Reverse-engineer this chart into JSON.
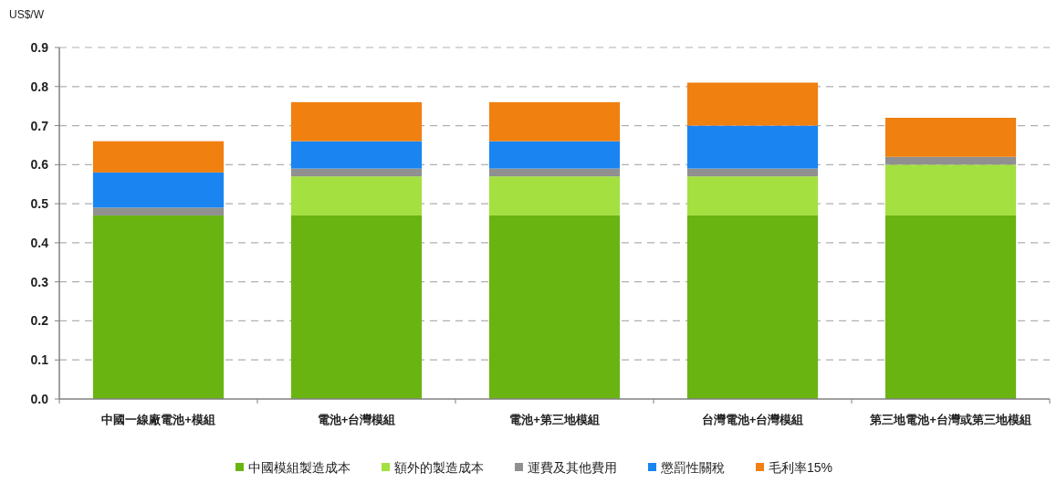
{
  "chart_data": {
    "type": "bar",
    "stacked": true,
    "ylabel": "US$/W",
    "categories": [
      "中國一線廠電池+模組",
      "電池+台灣模組",
      "電池+第三地模組",
      "台灣電池+台灣模組",
      "第三地電池+台灣或第三地模組"
    ],
    "series": [
      {
        "name": "中國模組製造成本",
        "color": "#6ab412",
        "values": [
          0.47,
          0.47,
          0.47,
          0.47,
          0.47
        ]
      },
      {
        "name": "額外的製造成本",
        "color": "#a3e040",
        "values": [
          0,
          0.1,
          0.1,
          0.1,
          0.13
        ]
      },
      {
        "name": "運費及其他費用",
        "color": "#909090",
        "values": [
          0.02,
          0.02,
          0.02,
          0.02,
          0.02
        ]
      },
      {
        "name": "懲罰性關稅",
        "color": "#1a85f0",
        "values": [
          0.09,
          0.07,
          0.07,
          0.11,
          0
        ]
      },
      {
        "name": "毛利率15%",
        "color": "#f08010",
        "values": [
          0.08,
          0.1,
          0.1,
          0.11,
          0.1
        ]
      }
    ],
    "ylim": [
      0,
      0.9
    ],
    "yticks": [
      {
        "value": 0,
        "label": "0.0"
      },
      {
        "value": 0.1,
        "label": "0.1"
      },
      {
        "value": 0.2,
        "label": "0.2"
      },
      {
        "value": 0.3,
        "label": "0.3"
      },
      {
        "value": 0.4,
        "label": "0.4"
      },
      {
        "value": 0.5,
        "label": "0.5"
      },
      {
        "value": 0.6,
        "label": "0.6"
      },
      {
        "value": 0.7,
        "label": "0.7"
      },
      {
        "value": 0.8,
        "label": "0.8"
      },
      {
        "value": 0.9,
        "label": "0.9"
      }
    ],
    "grid": "y",
    "legend": "bottom"
  }
}
